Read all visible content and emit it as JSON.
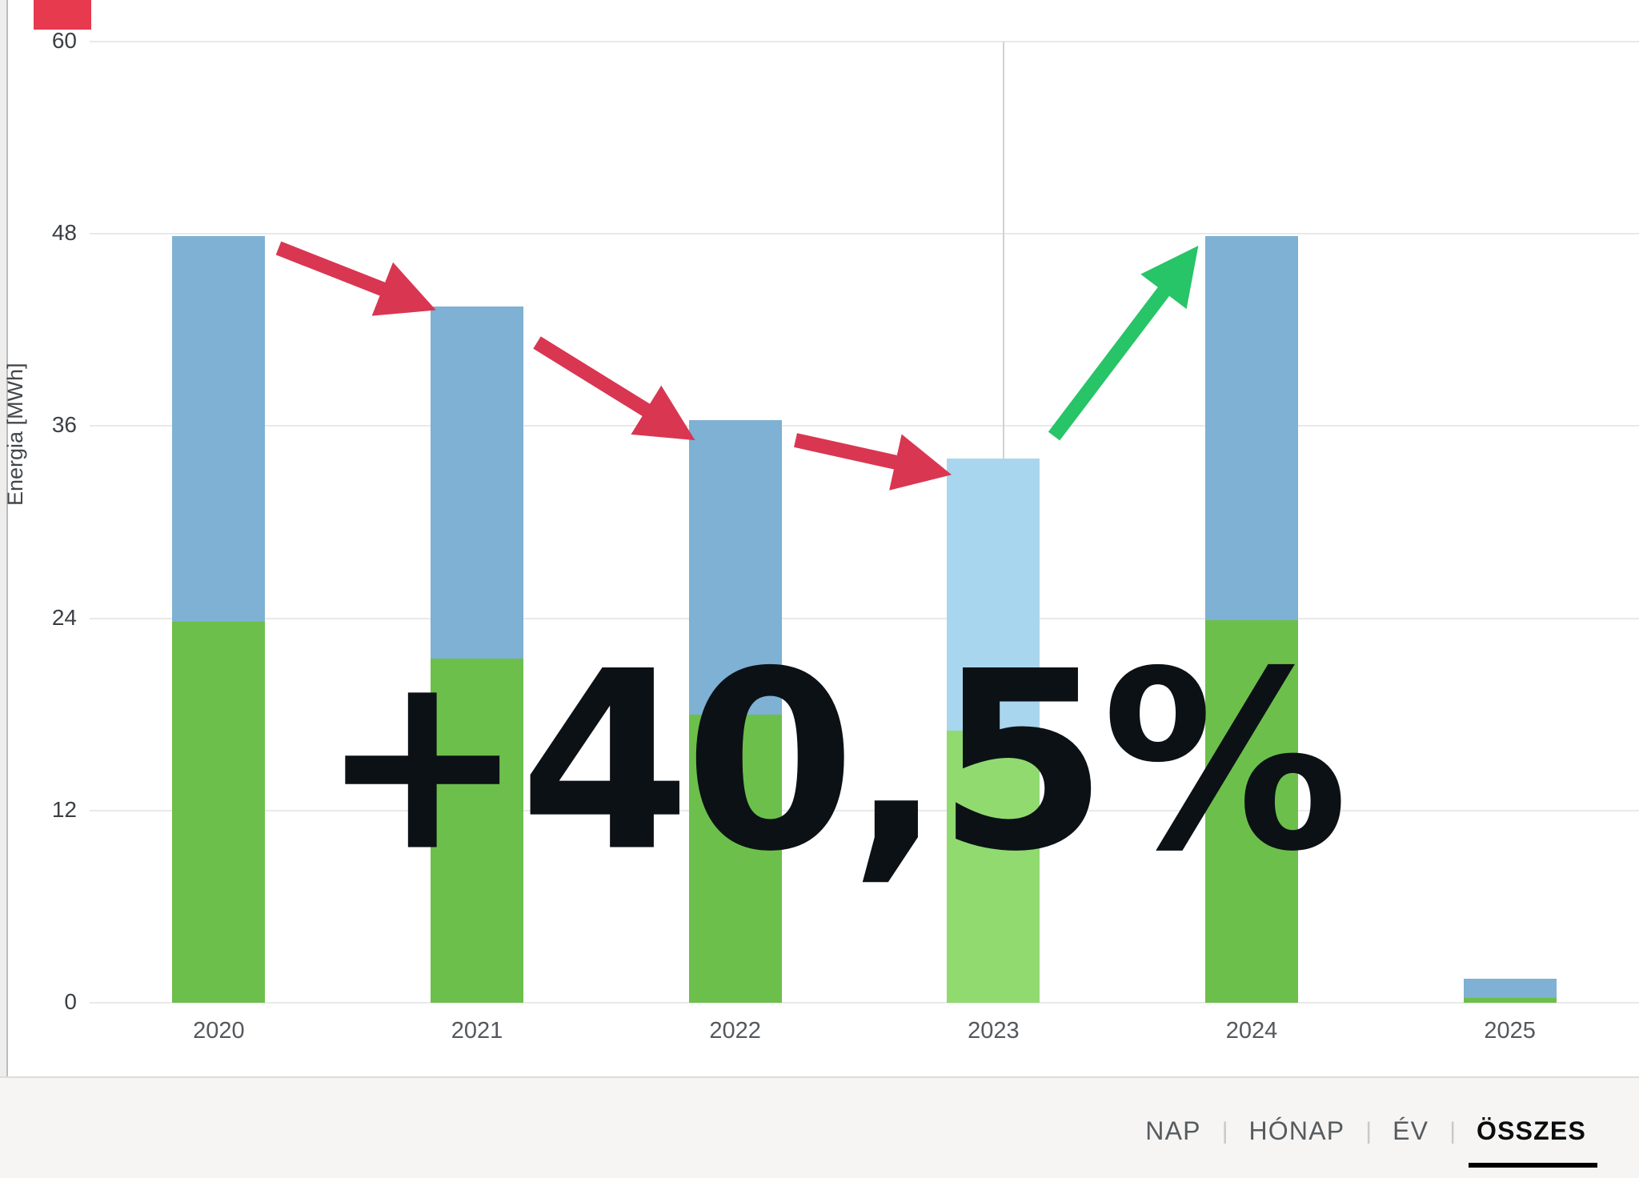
{
  "chart_data": {
    "type": "bar",
    "stacked": true,
    "title": "",
    "xlabel": "",
    "ylabel": "Energia [MWh]",
    "ylim": [
      0,
      60
    ],
    "yticks": [
      0,
      12,
      24,
      36,
      48,
      60
    ],
    "grid": "horizontal",
    "legend_position": "none",
    "categories": [
      "2020",
      "2021",
      "2022",
      "2023",
      "2024",
      "2025"
    ],
    "series": [
      {
        "name": "green-lower",
        "color": "#6dbf4b",
        "highlight_color": "#90da70",
        "values": [
          23.8,
          21.5,
          18.0,
          17.0,
          23.9,
          0.3
        ]
      },
      {
        "name": "blue-upper",
        "color": "#7eb1d3",
        "highlight_color": "#a9d6ef",
        "values": [
          24.1,
          22.0,
          18.4,
          17.0,
          24.0,
          1.2
        ]
      }
    ],
    "totals": [
      47.9,
      43.5,
      36.4,
      34.0,
      47.9,
      1.5
    ],
    "highlight_index": 3,
    "annotation": {
      "text": "+40,5%",
      "color": "#0c1116"
    },
    "trend_arrows": [
      {
        "from": "2020",
        "to": "2021",
        "direction": "down",
        "color": "#d93652"
      },
      {
        "from": "2021",
        "to": "2022",
        "direction": "down",
        "color": "#d93652"
      },
      {
        "from": "2022",
        "to": "2023",
        "direction": "down",
        "color": "#d93652"
      },
      {
        "from": "2023",
        "to": "2024",
        "direction": "up",
        "color": "#28c468"
      }
    ]
  },
  "footer": {
    "separator": "|",
    "tabs": [
      {
        "label": "NAP",
        "active": false
      },
      {
        "label": "HÓNAP",
        "active": false
      },
      {
        "label": "ÉV",
        "active": false
      },
      {
        "label": "ÖSSZES",
        "active": true
      }
    ]
  },
  "decorations": {
    "red_corner_mark_color": "#e73a4e",
    "crosshair_color": "#d0d2d4"
  }
}
